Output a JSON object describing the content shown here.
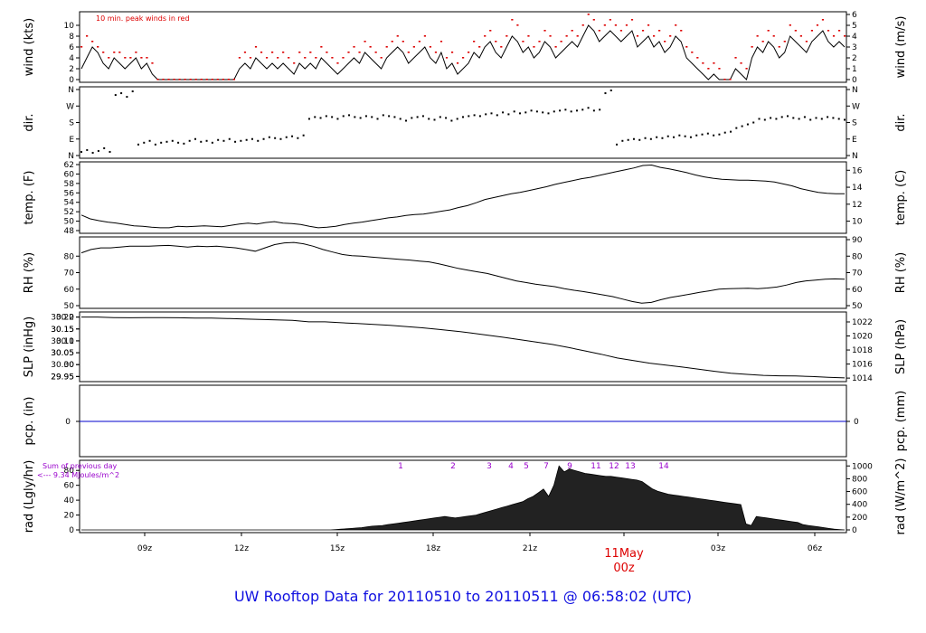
{
  "footer_title": "UW Rooftop Data for 20110510  to  20110511 @ 06:58:02  (UTC)",
  "colors": {
    "frame": "#000000",
    "peak": "#dd0000",
    "precip": "#0000cc",
    "annot": "#9900cc",
    "date": "#dd0000",
    "title": "#1010e0"
  },
  "chart_data": [
    {
      "type": "line",
      "panel": "wind",
      "ylabel": "wind (kts)",
      "ylabel_right": "wind (m/s)",
      "ylim": [
        0,
        12
      ],
      "yticks": [
        0,
        2,
        4,
        6,
        8,
        10
      ],
      "ylim_right": [
        0,
        6
      ],
      "yticks_right": [
        0,
        1,
        2,
        3,
        4,
        5,
        6
      ],
      "annotation": "10 min. peak winds in red",
      "series": [
        {
          "values": [
            2,
            4,
            6,
            5,
            3,
            2,
            4,
            3,
            2,
            3,
            4,
            2,
            3,
            1,
            0,
            0,
            0,
            0,
            0,
            0,
            0,
            0,
            0,
            0,
            0,
            0,
            0,
            0,
            0,
            2,
            3,
            2,
            4,
            3,
            2,
            3,
            2,
            3,
            2,
            1,
            3,
            2,
            3,
            2,
            4,
            3,
            2,
            1,
            2,
            3,
            4,
            3,
            5,
            4,
            3,
            2,
            4,
            5,
            6,
            5,
            3,
            4,
            5,
            6,
            4,
            3,
            5,
            2,
            3,
            1,
            2,
            3,
            5,
            4,
            6,
            7,
            5,
            4,
            6,
            8,
            7,
            5,
            6,
            4,
            5,
            7,
            6,
            4,
            5,
            6,
            7,
            6,
            8,
            10,
            9,
            7,
            8,
            9,
            8,
            7,
            8,
            9,
            6,
            7,
            8,
            6,
            7,
            5,
            6,
            8,
            7,
            4,
            3,
            2,
            1,
            0,
            1,
            0,
            0,
            0,
            2,
            1,
            0,
            4,
            6,
            5,
            7,
            6,
            4,
            5,
            8,
            7,
            6,
            5,
            7,
            8,
            9,
            7,
            6,
            7,
            6
          ]
        },
        {
          "values": [
            6,
            8,
            7,
            6,
            5,
            4,
            5,
            5,
            4,
            4,
            5,
            4,
            4,
            3,
            0,
            0,
            0,
            0,
            0,
            0,
            0,
            0,
            0,
            0,
            0,
            0,
            0,
            0,
            0,
            4,
            5,
            4,
            6,
            5,
            4,
            5,
            4,
            5,
            4,
            3,
            5,
            4,
            5,
            4,
            6,
            5,
            4,
            3,
            4,
            5,
            6,
            5,
            7,
            6,
            5,
            4,
            6,
            7,
            8,
            7,
            5,
            6,
            7,
            8,
            6,
            5,
            7,
            4,
            5,
            3,
            4,
            5,
            7,
            6,
            8,
            9,
            7,
            6,
            8,
            11,
            10,
            7,
            8,
            6,
            7,
            9,
            8,
            6,
            7,
            8,
            9,
            8,
            10,
            12,
            11,
            9,
            10,
            11,
            10,
            9,
            10,
            11,
            8,
            9,
            10,
            8,
            9,
            7,
            8,
            10,
            9,
            6,
            5,
            4,
            3,
            2,
            3,
            2,
            0,
            0,
            4,
            3,
            2,
            6,
            8,
            7,
            9,
            8,
            6,
            7,
            10,
            9,
            8,
            7,
            9,
            10,
            11,
            9,
            8,
            9,
            8
          ]
        }
      ]
    },
    {
      "type": "scatter",
      "panel": "dir",
      "ylabel": "dir.",
      "ylabel_right": "dir.",
      "ylim": [
        0,
        360
      ],
      "ytick_labels": [
        "N",
        "E",
        "S",
        "W",
        "N"
      ],
      "values": [
        20,
        30,
        15,
        25,
        40,
        20,
        330,
        340,
        320,
        350,
        60,
        70,
        80,
        60,
        70,
        75,
        80,
        70,
        65,
        80,
        90,
        75,
        80,
        70,
        85,
        80,
        90,
        75,
        80,
        85,
        90,
        80,
        90,
        100,
        95,
        90,
        100,
        105,
        95,
        110,
        200,
        210,
        205,
        215,
        210,
        200,
        215,
        220,
        210,
        205,
        215,
        210,
        200,
        220,
        215,
        210,
        200,
        190,
        205,
        210,
        215,
        200,
        195,
        210,
        205,
        190,
        200,
        210,
        215,
        220,
        215,
        225,
        230,
        220,
        235,
        225,
        240,
        230,
        235,
        245,
        240,
        235,
        230,
        240,
        245,
        250,
        240,
        245,
        250,
        260,
        245,
        250,
        340,
        355,
        60,
        80,
        85,
        90,
        85,
        95,
        90,
        100,
        95,
        105,
        100,
        110,
        105,
        100,
        110,
        115,
        120,
        110,
        115,
        125,
        130,
        150,
        160,
        170,
        180,
        200,
        195,
        205,
        200,
        210,
        215,
        205,
        200,
        210,
        195,
        205,
        200,
        210,
        205,
        200,
        195
      ]
    },
    {
      "type": "line",
      "panel": "temp",
      "ylabel": "temp. (F)",
      "ylabel_right": "temp. (C)",
      "ylim": [
        48,
        62
      ],
      "yticks": [
        48,
        50,
        52,
        54,
        56,
        58,
        60,
        62
      ],
      "ylim_right": [
        8.89,
        16.67
      ],
      "yticks_right": [
        10,
        12,
        14,
        16
      ],
      "values": [
        51.3,
        50.5,
        50.1,
        49.8,
        49.6,
        49.3,
        49.0,
        48.9,
        48.7,
        48.6,
        48.6,
        48.9,
        48.8,
        48.9,
        49.0,
        48.9,
        48.8,
        49.1,
        49.4,
        49.6,
        49.4,
        49.7,
        49.9,
        49.6,
        49.5,
        49.3,
        48.9,
        48.6,
        48.7,
        48.9,
        49.3,
        49.6,
        49.8,
        50.1,
        50.4,
        50.7,
        50.9,
        51.2,
        51.4,
        51.5,
        51.8,
        52.1,
        52.4,
        52.9,
        53.3,
        53.9,
        54.6,
        55.0,
        55.4,
        55.8,
        56.1,
        56.5,
        56.9,
        57.3,
        57.8,
        58.2,
        58.6,
        59.0,
        59.3,
        59.7,
        60.1,
        60.5,
        60.9,
        61.3,
        61.8,
        61.9,
        61.4,
        61.1,
        60.7,
        60.3,
        59.8,
        59.4,
        59.1,
        58.9,
        58.8,
        58.7,
        58.7,
        58.6,
        58.5,
        58.3,
        57.9,
        57.5,
        56.9,
        56.5,
        56.1,
        55.9,
        55.8,
        55.8
      ]
    },
    {
      "type": "line",
      "panel": "rh",
      "ylabel": "RH (%)",
      "ylabel_right": "RH (%)",
      "ylim": [
        50,
        90
      ],
      "yticks": [
        50,
        60,
        70,
        80
      ],
      "ylim_right": [
        50,
        90
      ],
      "yticks_right": [
        50,
        60,
        70,
        80,
        90
      ],
      "values": [
        82,
        84,
        85,
        85,
        85.5,
        86,
        86,
        86,
        86.3,
        86.5,
        86,
        85.5,
        86,
        85.8,
        86,
        85.5,
        85,
        84,
        83,
        85,
        87,
        88,
        88.3,
        87.5,
        86,
        84,
        82.5,
        81,
        80.3,
        80,
        79.5,
        79,
        78.5,
        78,
        77.6,
        77,
        76.5,
        75.3,
        74,
        72.6,
        71.5,
        70.5,
        69.5,
        68,
        66.5,
        65,
        64,
        63,
        62.3,
        61.5,
        60.3,
        59.3,
        58.5,
        57.5,
        56.5,
        55.5,
        54,
        52.5,
        51.5,
        52,
        53.6,
        55,
        56,
        57,
        58.1,
        59,
        60,
        60.3,
        60.4,
        60.5,
        60.3,
        60.7,
        61.3,
        62.5,
        64,
        65,
        65.5,
        66,
        66.2,
        66
      ]
    },
    {
      "type": "line",
      "panel": "slp",
      "ylabel": "SLP (inHg)",
      "ylabel_right": "SLP (hPa)",
      "ylim": [
        29.94,
        30.21
      ],
      "yticks": [
        29.95,
        30.0,
        30.05,
        30.1,
        30.15,
        30.2
      ],
      "yticks_right": [
        1014,
        1016,
        1018,
        1020,
        1022
      ],
      "values": [
        30.2,
        30.2,
        30.198,
        30.197,
        30.198,
        30.198,
        30.197,
        30.196,
        30.196,
        30.194,
        30.192,
        30.19,
        30.188,
        30.186,
        30.18,
        30.18,
        30.176,
        30.173,
        30.169,
        30.165,
        30.16,
        30.155,
        30.148,
        30.141,
        30.133,
        30.124,
        30.115,
        30.105,
        30.095,
        30.085,
        30.072,
        30.058,
        30.044,
        30.028,
        30.017,
        30.006,
        29.998,
        29.99,
        29.981,
        29.972,
        29.964,
        29.959,
        29.955,
        29.953,
        29.952,
        29.95,
        29.947,
        29.944
      ]
    },
    {
      "type": "line",
      "panel": "pcp",
      "ylabel": "pcp. (in)",
      "ylabel_right": "pcp. (mm)",
      "ytick_label_left": "0",
      "ytick_label_right": "0",
      "values": [
        0,
        0
      ]
    },
    {
      "type": "area",
      "panel": "rad",
      "ylabel": "rad (Lgly/hr)",
      "ylabel_right": "rad (W/m^2)",
      "ylim": [
        0,
        90
      ],
      "yticks": [
        0,
        20,
        40,
        60,
        80
      ],
      "ylim_right": [
        0,
        1046
      ],
      "yticks_right": [
        0,
        200,
        400,
        600,
        800,
        1000
      ],
      "annotation_line1": "Sum of previous day",
      "annotation_line2": "<--- 9.34 MJoules/m^2",
      "hour_markers": [
        "1",
        "2",
        "3",
        "4",
        "5",
        "6",
        "7",
        "8",
        "9",
        "10",
        "11",
        "12",
        "13",
        "14"
      ],
      "values": [
        0,
        0,
        0,
        0,
        0,
        0,
        0,
        0,
        0,
        0,
        0,
        0,
        0,
        0,
        0,
        0,
        0,
        0,
        0,
        0,
        0,
        0,
        0,
        0,
        0,
        0,
        0,
        0,
        0,
        0,
        0,
        0,
        0,
        0,
        0,
        0,
        0,
        0,
        0,
        0,
        0,
        0,
        0,
        0,
        0,
        0,
        0,
        0,
        0,
        0.5,
        1,
        1.5,
        2,
        2.5,
        3,
        4,
        5,
        5.5,
        6,
        7,
        8,
        9,
        10,
        11,
        12,
        13,
        14,
        15,
        16,
        17,
        18,
        17,
        16,
        17,
        18,
        19,
        20,
        22,
        24,
        26,
        28,
        30,
        32,
        34,
        36,
        38,
        42,
        45,
        50,
        55,
        45,
        60,
        86,
        78,
        82,
        80,
        78,
        76,
        75,
        74,
        73,
        72,
        72,
        71,
        70,
        69,
        68,
        67,
        65,
        60,
        55,
        52,
        50,
        48,
        47,
        46,
        45,
        44,
        43,
        42,
        41,
        40,
        39,
        38,
        37,
        36,
        35,
        34,
        8,
        6,
        18,
        17,
        16,
        15,
        14,
        13,
        12,
        11,
        10,
        7,
        6,
        5,
        4,
        3,
        2,
        1,
        0.5,
        0
      ]
    }
  ],
  "x_axis": {
    "tick_labels": [
      "09z",
      "12z",
      "15z",
      "18z",
      "21z",
      "03z",
      "06z"
    ],
    "date_label": "11May",
    "date_hour": "00z"
  }
}
